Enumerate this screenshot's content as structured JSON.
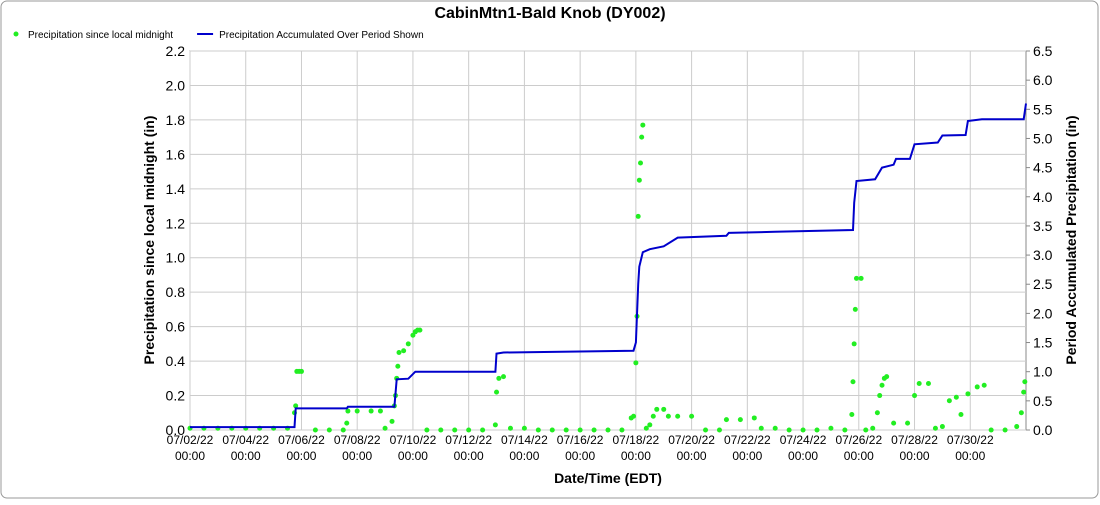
{
  "chart_data": {
    "type": "combo",
    "title": "CabinMtn1-Bald Knob (DY002)",
    "x_label": "Date/Time (EDT)",
    "y_label": "Precipitation since local midnight (in)",
    "y2_label": "Period Accumulated Precipitation (in)",
    "xlim": [
      "2022-07-02T00:00",
      "2022-08-01T00:00"
    ],
    "xticks": [
      {
        "value": "2022-07-02T00:00",
        "label": "07/02/22 00:00"
      },
      {
        "value": "2022-07-04T00:00",
        "label": "07/04/22 00:00"
      },
      {
        "value": "2022-07-06T00:00",
        "label": "07/06/22 00:00"
      },
      {
        "value": "2022-07-08T00:00",
        "label": "07/08/22 00:00"
      },
      {
        "value": "2022-07-10T00:00",
        "label": "07/10/22 00:00"
      },
      {
        "value": "2022-07-12T00:00",
        "label": "07/12/22 00:00"
      },
      {
        "value": "2022-07-14T00:00",
        "label": "07/14/22 00:00"
      },
      {
        "value": "2022-07-16T00:00",
        "label": "07/16/22 00:00"
      },
      {
        "value": "2022-07-18T00:00",
        "label": "07/18/22 00:00"
      },
      {
        "value": "2022-07-20T00:00",
        "label": "07/20/22 00:00"
      },
      {
        "value": "2022-07-22T00:00",
        "label": "07/22/22 00:00"
      },
      {
        "value": "2022-07-24T00:00",
        "label": "07/24/22 00:00"
      },
      {
        "value": "2022-07-26T00:00",
        "label": "07/26/22 00:00"
      },
      {
        "value": "2022-07-28T00:00",
        "label": "07/28/22 00:00"
      },
      {
        "value": "2022-07-30T00:00",
        "label": "07/30/22 00:00"
      }
    ],
    "ylim": [
      0,
      2.2
    ],
    "yticks": [
      {
        "value": 0,
        "label": "0.0"
      },
      0.2,
      0.4,
      0.6,
      0.8,
      {
        "value": 1,
        "label": "1.0"
      },
      1.2,
      1.4,
      1.6,
      1.8,
      {
        "value": 2,
        "label": "2.0"
      },
      2.2
    ],
    "y2lim": [
      0,
      6.5
    ],
    "y2ticks": [
      {
        "value": 0,
        "label": "0.0"
      },
      0.5,
      {
        "value": 1,
        "label": "1.0"
      },
      1.5,
      {
        "value": 2,
        "label": "2.0"
      },
      2.5,
      {
        "value": 3,
        "label": "3.0"
      },
      3.5,
      {
        "value": 4,
        "label": "4.0"
      },
      4.5,
      {
        "value": 5,
        "label": "5.0"
      },
      5.5,
      {
        "value": 6,
        "label": "6.0"
      },
      6.5
    ],
    "grid": true,
    "legend": "top-left",
    "series": [
      {
        "name": "Precipitation since local midnight",
        "type": "scatter",
        "color": "#22ee22",
        "x": [
          "2022-07-02T00:00",
          "2022-07-02T12:00",
          "2022-07-03T00:00",
          "2022-07-03T12:00",
          "2022-07-04T00:00",
          "2022-07-04T12:00",
          "2022-07-05T00:00",
          "2022-07-05T12:00",
          "2022-07-05T18:00",
          "2022-07-05T19:00",
          "2022-07-05T20:00",
          "2022-07-05T22:00",
          "2022-07-06T00:00",
          "2022-07-06T12:00",
          "2022-07-07T00:00",
          "2022-07-07T12:00",
          "2022-07-07T15:00",
          "2022-07-07T16:00",
          "2022-07-08T00:00",
          "2022-07-08T12:00",
          "2022-07-08T20:00",
          "2022-07-09T00:00",
          "2022-07-09T06:00",
          "2022-07-09T08:00",
          "2022-07-09T09:00",
          "2022-07-09T10:00",
          "2022-07-09T11:00",
          "2022-07-09T12:00",
          "2022-07-09T16:00",
          "2022-07-09T20:00",
          "2022-07-10T00:00",
          "2022-07-10T02:00",
          "2022-07-10T04:00",
          "2022-07-10T06:00",
          "2022-07-10T12:00",
          "2022-07-11T00:00",
          "2022-07-11T12:00",
          "2022-07-12T00:00",
          "2022-07-12T12:00",
          "2022-07-12T23:00",
          "2022-07-13T00:00",
          "2022-07-13T02:00",
          "2022-07-13T06:00",
          "2022-07-13T12:00",
          "2022-07-14T00:00",
          "2022-07-14T12:00",
          "2022-07-15T00:00",
          "2022-07-15T12:00",
          "2022-07-16T00:00",
          "2022-07-16T12:00",
          "2022-07-17T00:00",
          "2022-07-17T12:00",
          "2022-07-17T20:00",
          "2022-07-17T22:00",
          "2022-07-18T00:00",
          "2022-07-18T01:00",
          "2022-07-18T02:00",
          "2022-07-18T03:00",
          "2022-07-18T04:00",
          "2022-07-18T05:00",
          "2022-07-18T06:00",
          "2022-07-18T09:00",
          "2022-07-18T12:00",
          "2022-07-18T15:00",
          "2022-07-18T18:00",
          "2022-07-19T00:00",
          "2022-07-19T04:00",
          "2022-07-19T12:00",
          "2022-07-20T00:00",
          "2022-07-20T12:00",
          "2022-07-21T00:00",
          "2022-07-21T06:00",
          "2022-07-21T18:00",
          "2022-07-22T06:00",
          "2022-07-22T12:00",
          "2022-07-23T00:00",
          "2022-07-23T12:00",
          "2022-07-24T00:00",
          "2022-07-24T12:00",
          "2022-07-25T00:00",
          "2022-07-25T12:00",
          "2022-07-25T18:00",
          "2022-07-25T19:00",
          "2022-07-25T20:00",
          "2022-07-25T21:00",
          "2022-07-25T22:00",
          "2022-07-26T02:00",
          "2022-07-26T06:00",
          "2022-07-26T12:00",
          "2022-07-26T16:00",
          "2022-07-26T18:00",
          "2022-07-26T20:00",
          "2022-07-26T22:00",
          "2022-07-27T00:00",
          "2022-07-27T06:00",
          "2022-07-27T18:00",
          "2022-07-28T00:00",
          "2022-07-28T04:00",
          "2022-07-28T12:00",
          "2022-07-28T18:00",
          "2022-07-29T00:00",
          "2022-07-29T06:00",
          "2022-07-29T12:00",
          "2022-07-29T16:00",
          "2022-07-29T22:00",
          "2022-07-30T06:00",
          "2022-07-30T12:00",
          "2022-07-30T18:00",
          "2022-07-31T06:00",
          "2022-07-31T16:00",
          "2022-07-31T20:00",
          "2022-07-31T22:00",
          "2022-07-31T23:00"
        ],
        "values": [
          0.01,
          0.01,
          0.01,
          0.01,
          0.01,
          0.01,
          0.01,
          0.01,
          0.1,
          0.14,
          0.34,
          0.34,
          0.34,
          0,
          0,
          0,
          0.04,
          0.11,
          0.11,
          0.11,
          0.11,
          0.01,
          0.05,
          0.14,
          0.2,
          0.3,
          0.37,
          0.45,
          0.46,
          0.5,
          0.55,
          0.57,
          0.58,
          0.58,
          0,
          0,
          0,
          0,
          0,
          0.03,
          0.22,
          0.3,
          0.31,
          0.01,
          0.01,
          0,
          0,
          0,
          0,
          0,
          0,
          0,
          0.07,
          0.08,
          0.39,
          0.66,
          1.24,
          1.45,
          1.55,
          1.7,
          1.77,
          0.01,
          0.03,
          0.08,
          0.12,
          0.12,
          0.08,
          0.08,
          0.08,
          0,
          0,
          0.06,
          0.06,
          0.07,
          0.01,
          0.01,
          0,
          0,
          0,
          0.01,
          0,
          0.09,
          0.28,
          0.5,
          0.7,
          0.88,
          0.88,
          0,
          0.01,
          0.1,
          0.2,
          0.26,
          0.3,
          0.31,
          0.04,
          0.04,
          0.2,
          0.27,
          0.27,
          0.01,
          0.02,
          0.17,
          0.19,
          0.09,
          0.21,
          0.25,
          0.26,
          0,
          0,
          0.02,
          0.1,
          0.22,
          0.28
        ]
      },
      {
        "name": "Precipitation Accumulated Over Period Shown",
        "type": "line",
        "axis": "y2",
        "color": "#0000cc",
        "x": [
          "2022-07-02T00:00",
          "2022-07-05T18:00",
          "2022-07-05T19:00",
          "2022-07-07T15:00",
          "2022-07-07T16:00",
          "2022-07-09T08:00",
          "2022-07-09T10:00",
          "2022-07-09T20:00",
          "2022-07-10T02:00",
          "2022-07-12T23:00",
          "2022-07-13T00:00",
          "2022-07-13T06:00",
          "2022-07-17T22:00",
          "2022-07-18T00:00",
          "2022-07-18T02:00",
          "2022-07-18T03:00",
          "2022-07-18T06:00",
          "2022-07-18T12:00",
          "2022-07-19T00:00",
          "2022-07-19T12:00",
          "2022-07-21T06:00",
          "2022-07-21T08:00",
          "2022-07-23T00:00",
          "2022-07-25T19:00",
          "2022-07-25T20:00",
          "2022-07-25T22:00",
          "2022-07-26T14:00",
          "2022-07-26T20:00",
          "2022-07-27T06:00",
          "2022-07-27T08:00",
          "2022-07-27T20:00",
          "2022-07-28T00:00",
          "2022-07-28T20:00",
          "2022-07-29T00:00",
          "2022-07-29T20:00",
          "2022-07-29T22:00",
          "2022-07-30T10:00",
          "2022-07-31T22:00",
          "2022-08-01T00:00"
        ],
        "values": [
          0.05,
          0.05,
          0.37,
          0.37,
          0.4,
          0.4,
          0.87,
          0.88,
          1.0,
          1.0,
          1.31,
          1.33,
          1.36,
          1.5,
          2.5,
          2.8,
          3.05,
          3.1,
          3.15,
          3.3,
          3.33,
          3.38,
          3.4,
          3.43,
          3.9,
          4.27,
          4.3,
          4.5,
          4.55,
          4.65,
          4.65,
          4.9,
          4.93,
          5.05,
          5.06,
          5.3,
          5.33,
          5.33,
          5.6
        ]
      }
    ]
  }
}
